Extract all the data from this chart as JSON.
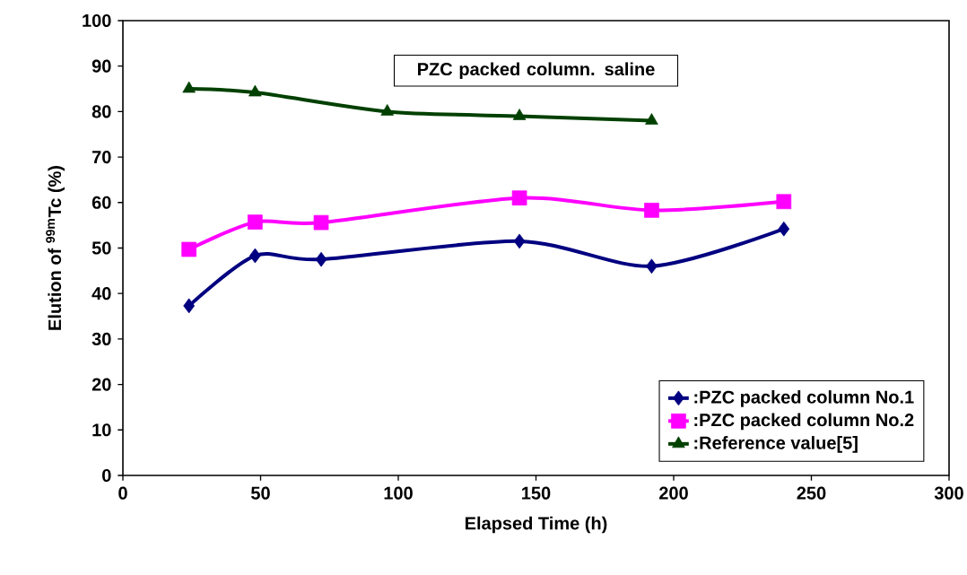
{
  "chart_data": {
    "type": "line",
    "title": "PZC packed column. saline",
    "xlabel": "Elapsed Time (h)",
    "ylabel": "Elution of $^{99m}$Tc (%)",
    "xlim": [
      0,
      300
    ],
    "xticks": [
      0,
      50,
      100,
      150,
      200,
      250,
      300
    ],
    "ylim": [
      0,
      100
    ],
    "yticks": [
      0,
      10,
      20,
      30,
      40,
      50,
      60,
      70,
      80,
      90,
      100
    ],
    "grid": false,
    "legend": "bottom right",
    "line_style": "solid",
    "series": [
      {
        "name": ":PZC packed column No.1",
        "color": "#000080",
        "marker": "diamond",
        "x": [
          24,
          48,
          72,
          144,
          192,
          240
        ],
        "values": [
          37.3,
          48.3,
          47.5,
          51.5,
          46,
          54.2
        ]
      },
      {
        "name": ":PZC packed column No.2",
        "color": "#ff00ff",
        "marker": "square",
        "x": [
          24,
          48,
          72,
          144,
          192,
          240
        ],
        "values": [
          49.7,
          55.7,
          55.6,
          61,
          58.3,
          60.2
        ]
      },
      {
        "name": ":Reference value[5]",
        "color": "#004000",
        "marker": "triangle",
        "x": [
          24,
          48,
          96,
          144,
          192
        ],
        "values": [
          85,
          84.2,
          80,
          79,
          78
        ]
      }
    ]
  }
}
